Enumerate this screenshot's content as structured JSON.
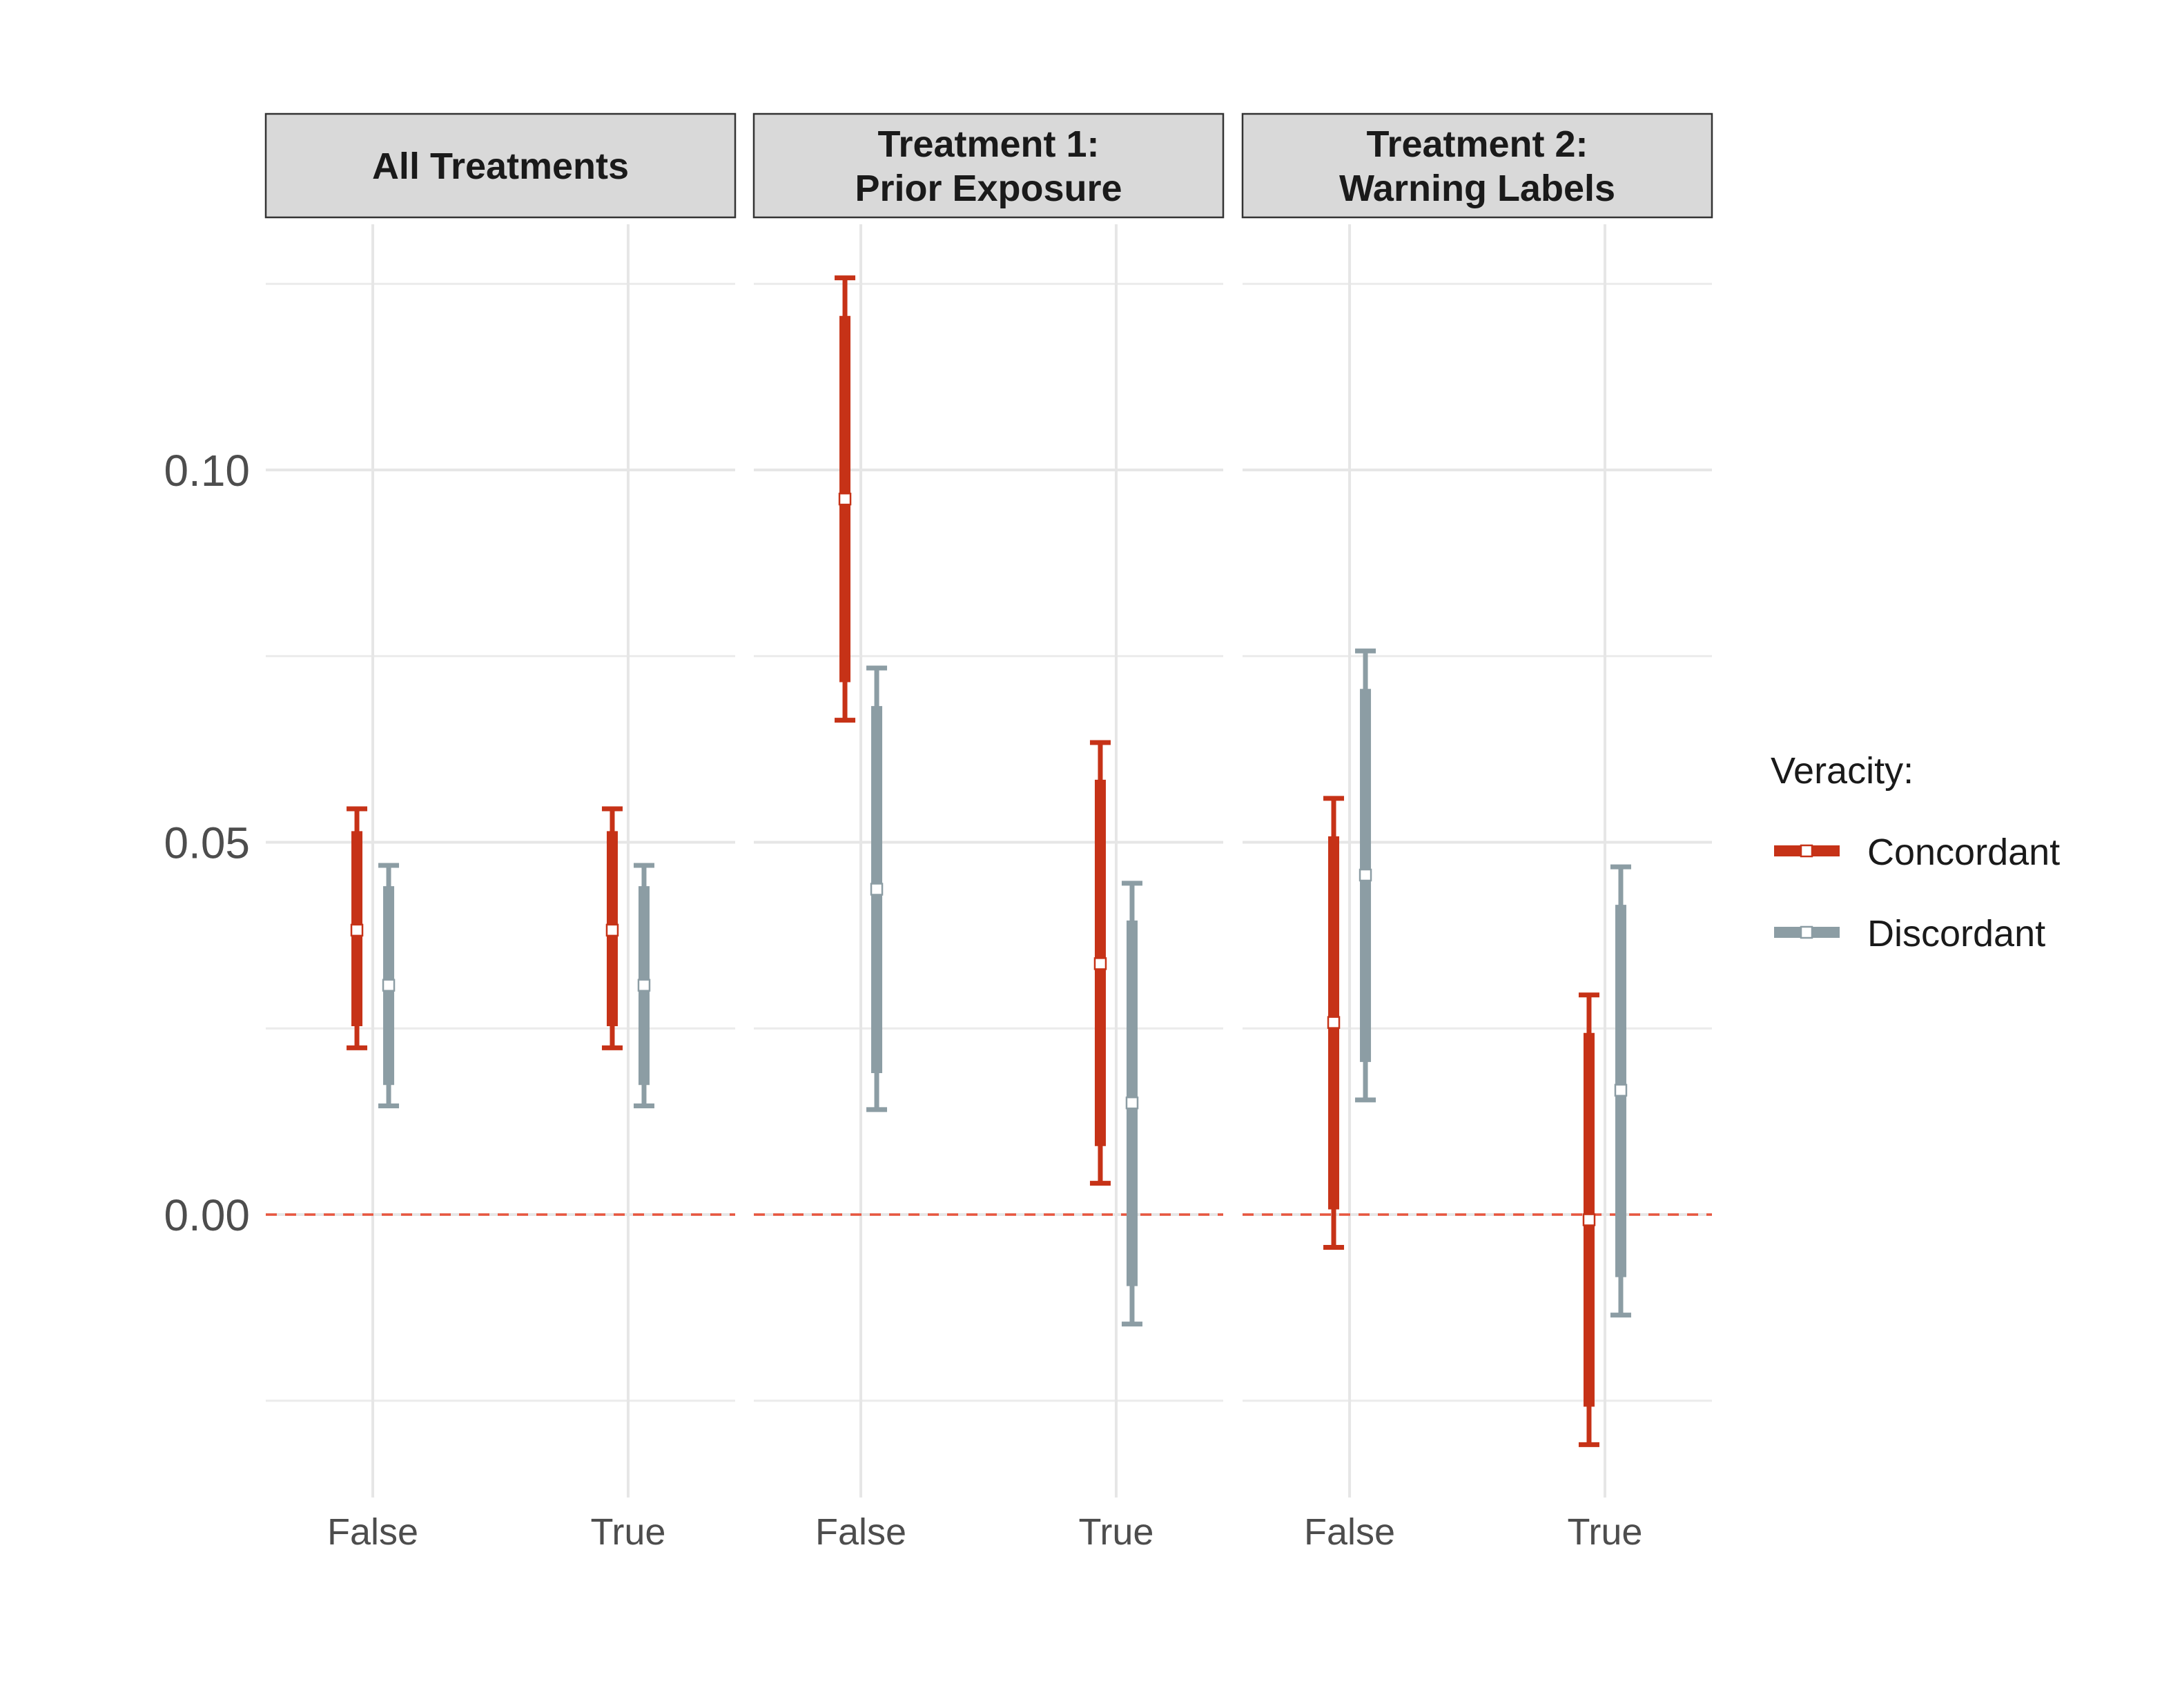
{
  "chart_data": {
    "type": "errorbar",
    "y_ticks": [
      {
        "value": 0.1,
        "label": "0.10"
      },
      {
        "value": 0.05,
        "label": "0.05"
      },
      {
        "value": 0.0,
        "label": "0.00"
      }
    ],
    "y_minor_ticks": [
      -0.025,
      0.025,
      0.075,
      0.125
    ],
    "ylim": [
      -0.038,
      0.133
    ],
    "reference_line": {
      "value": 0.0,
      "style": "dashed",
      "color": "#E8563F"
    },
    "legend": {
      "title": "Veracity:",
      "position": "right",
      "entries": [
        {
          "name": "Concordant",
          "color": "#C63217"
        },
        {
          "name": "Discordant",
          "color": "#8C9DA4"
        }
      ]
    },
    "categories": [
      "False",
      "True"
    ],
    "panels": [
      {
        "title_lines": [
          "All Treatments"
        ],
        "series": [
          {
            "name": "Concordant",
            "points": [
              {
                "x": "False",
                "estimate": 0.0382,
                "ci90": [
                  0.0253,
                  0.0515
                ],
                "ci95": [
                  0.0224,
                  0.0545
                ]
              },
              {
                "x": "True",
                "estimate": 0.0382,
                "ci90": [
                  0.0253,
                  0.0515
                ],
                "ci95": [
                  0.0224,
                  0.0545
                ]
              }
            ]
          },
          {
            "name": "Discordant",
            "points": [
              {
                "x": "False",
                "estimate": 0.0308,
                "ci90": [
                  0.0174,
                  0.0441
                ],
                "ci95": [
                  0.0146,
                  0.0469
                ]
              },
              {
                "x": "True",
                "estimate": 0.0308,
                "ci90": [
                  0.0174,
                  0.0441
                ],
                "ci95": [
                  0.0146,
                  0.0469
                ]
              }
            ]
          }
        ]
      },
      {
        "title_lines": [
          "Treatment 1:",
          "Prior Exposure"
        ],
        "series": [
          {
            "name": "Concordant",
            "points": [
              {
                "x": "False",
                "estimate": 0.0961,
                "ci90": [
                  0.0715,
                  0.1207
                ],
                "ci95": [
                  0.0664,
                  0.1258
                ]
              },
              {
                "x": "True",
                "estimate": 0.0337,
                "ci90": [
                  0.0092,
                  0.0584
                ],
                "ci95": [
                  0.0042,
                  0.0634
                ]
              }
            ]
          },
          {
            "name": "Discordant",
            "points": [
              {
                "x": "False",
                "estimate": 0.0437,
                "ci90": [
                  0.019,
                  0.0683
                ],
                "ci95": [
                  0.0141,
                  0.0734
                ]
              },
              {
                "x": "True",
                "estimate": 0.015,
                "ci90": [
                  -0.0096,
                  0.0395
                ],
                "ci95": [
                  -0.0147,
                  0.0445
                ]
              }
            ]
          }
        ]
      },
      {
        "title_lines": [
          "Treatment 2:",
          "Warning Labels"
        ],
        "series": [
          {
            "name": "Concordant",
            "points": [
              {
                "x": "False",
                "estimate": 0.0258,
                "ci90": [
                  0.0007,
                  0.0508
                ],
                "ci95": [
                  -0.0044,
                  0.0559
                ]
              },
              {
                "x": "True",
                "estimate": -0.0007,
                "ci90": [
                  -0.0258,
                  0.0244
                ],
                "ci95": [
                  -0.0309,
                  0.0295
                ]
              }
            ]
          },
          {
            "name": "Discordant",
            "points": [
              {
                "x": "False",
                "estimate": 0.0456,
                "ci90": [
                  0.0205,
                  0.0706
                ],
                "ci95": [
                  0.0154,
                  0.0757
                ]
              },
              {
                "x": "True",
                "estimate": 0.0167,
                "ci90": [
                  -0.0084,
                  0.0416
                ],
                "ci95": [
                  -0.0135,
                  0.0467
                ]
              }
            ]
          }
        ]
      }
    ]
  }
}
